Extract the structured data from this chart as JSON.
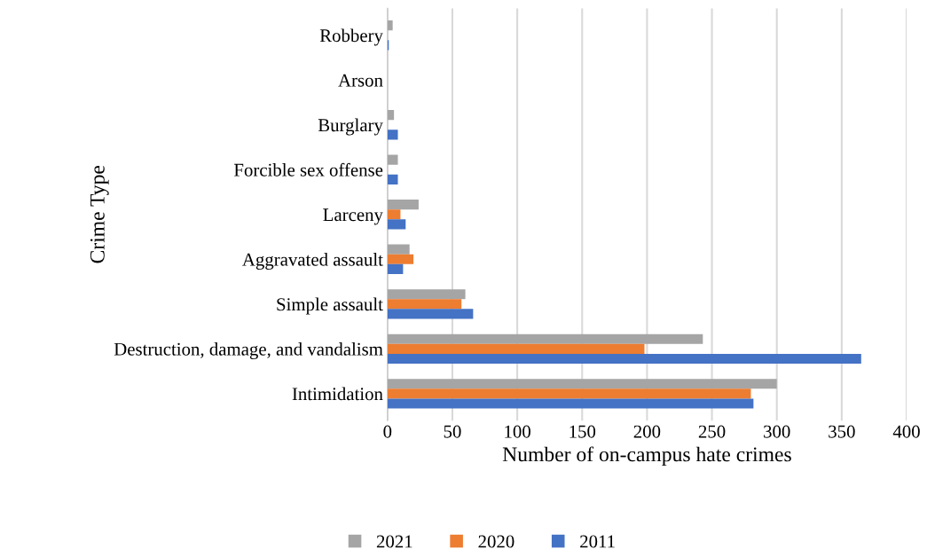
{
  "chart_data": {
    "type": "bar",
    "orientation": "horizontal",
    "xlabel": "Number of on-campus hate crimes",
    "ylabel": "Crime Type",
    "categories": [
      "Robbery",
      "Arson",
      "Burglary",
      "Forcible sex offense",
      "Larceny",
      "Aggravated assault",
      "Simple assault",
      "Destruction, damage, and vandalism",
      "Intimidation"
    ],
    "series": [
      {
        "name": "2021",
        "color": "#a5a5a5",
        "values": [
          4,
          0,
          5,
          8,
          24,
          17,
          60,
          243,
          300
        ]
      },
      {
        "name": "2020",
        "color": "#ed7d31",
        "values": [
          0,
          0,
          0,
          0,
          10,
          20,
          57,
          198,
          280
        ]
      },
      {
        "name": "2011",
        "color": "#4472c4",
        "values": [
          1,
          0,
          8,
          8,
          14,
          12,
          66,
          365,
          282
        ]
      }
    ],
    "xlim": [
      0,
      400
    ],
    "xticks": [
      0,
      50,
      100,
      150,
      200,
      250,
      300,
      350,
      400
    ],
    "grid": "x",
    "legend": "bottom"
  }
}
